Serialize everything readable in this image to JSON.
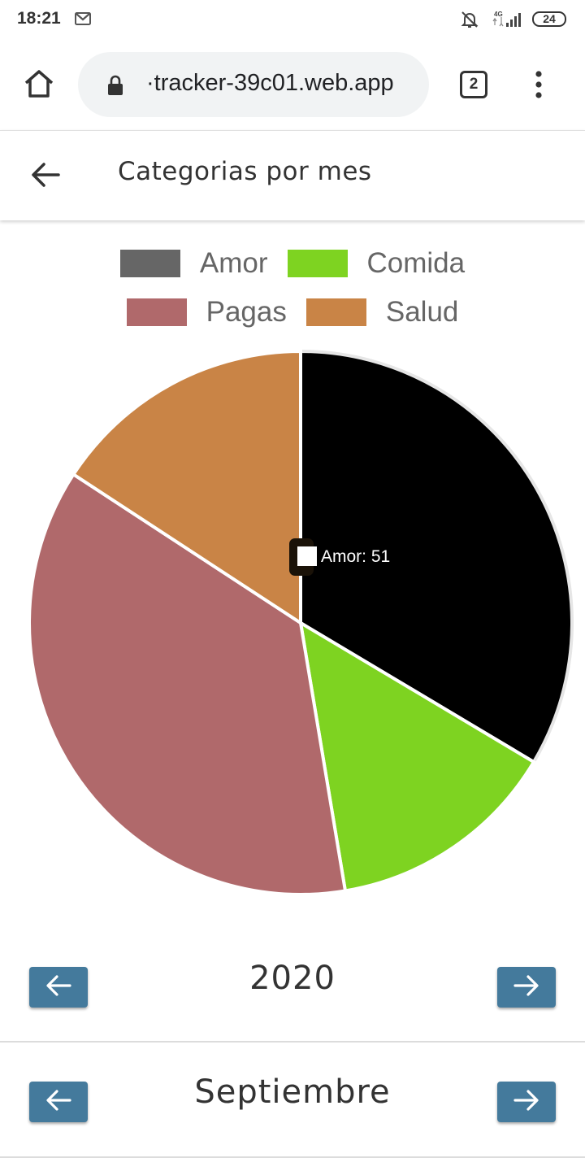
{
  "status_bar": {
    "time": "18:21",
    "network": "4G",
    "battery": "24",
    "icons": [
      "gmail-icon",
      "notifications-muted-icon",
      "signal-icon",
      "battery-icon"
    ]
  },
  "browser": {
    "url": "·tracker-39c01.web.app",
    "tab_count": "2",
    "icons": [
      "home-icon",
      "lock-icon",
      "tabs-icon",
      "more-vert-icon"
    ]
  },
  "header": {
    "title": "Categorias por mes",
    "back_icon": "arrow-back-icon"
  },
  "chart_data": {
    "type": "pie",
    "legend": [
      "Amor",
      "Comida",
      "Pagas",
      "Salud"
    ],
    "legend_position": "top",
    "categories": [
      "Amor",
      "Comida",
      "Pagas",
      "Salud"
    ],
    "values": [
      51,
      21,
      56,
      24
    ],
    "colors": [
      "#000000",
      "#7ed321",
      "#b0696b",
      "#c98446"
    ],
    "legend_colors": [
      "#666666",
      "#7ed321",
      "#b0696b",
      "#c98446"
    ],
    "tooltip": {
      "label": "Amor: 51",
      "swatch_color": "#ffffff"
    }
  },
  "year_selector": {
    "value": "2020",
    "prev_icon": "arrow-left-icon",
    "next_icon": "arrow-right-icon"
  },
  "month_selector": {
    "value": "Septiembre",
    "prev_icon": "arrow-left-icon",
    "next_icon": "arrow-right-icon"
  },
  "colors": {
    "nav_button": "#447a9c",
    "url_pill": "#f1f3f4"
  }
}
